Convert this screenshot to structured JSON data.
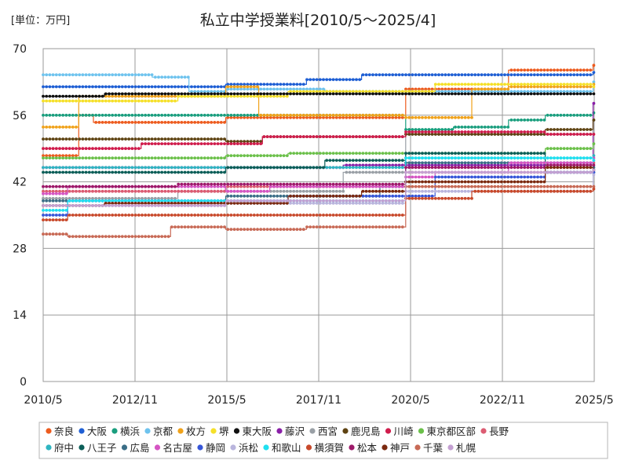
{
  "chart_data": {
    "type": "line",
    "title": "私立中学授業料[2010/5〜2025/4]",
    "unit_label": "[単位：万円]",
    "xlabel": "",
    "ylabel": "",
    "ylim": [
      0,
      70
    ],
    "yticks": [
      "0",
      "14",
      "28",
      "42",
      "56",
      "70"
    ],
    "ytick_values": [
      0,
      14,
      28,
      42,
      56,
      70
    ],
    "xlim": [
      2010.333,
      2025.333
    ],
    "xticks": [
      "2010/5",
      "2012/11",
      "2015/5",
      "2017/11",
      "2020/5",
      "2022/11",
      "2025/5"
    ],
    "xtick_values": [
      2010.333,
      2012.833,
      2015.333,
      2017.833,
      2020.333,
      2022.833,
      2025.333
    ],
    "grid": true,
    "legend_position": "bottom",
    "series": [
      {
        "name": "奈良",
        "color": "#ED5B1E",
        "steps": [
          [
            2010.333,
            47.5
          ],
          [
            2011.3,
            56
          ],
          [
            2011.7,
            54.5
          ],
          [
            2015.3,
            55.5
          ],
          [
            2020.2,
            61.5
          ],
          [
            2023.0,
            65.5
          ],
          [
            2025.3,
            66.5
          ]
        ]
      },
      {
        "name": "大阪",
        "color": "#1F5FD4",
        "steps": [
          [
            2010.333,
            62
          ],
          [
            2015.3,
            62.5
          ],
          [
            2017.5,
            63.5
          ],
          [
            2019.0,
            64.5
          ],
          [
            2023.0,
            64.5
          ],
          [
            2025.3,
            65
          ]
        ]
      },
      {
        "name": "横浜",
        "color": "#1A9E7E",
        "steps": [
          [
            2010.333,
            56
          ],
          [
            2020.2,
            53
          ],
          [
            2021.5,
            53.5
          ],
          [
            2023.0,
            55
          ],
          [
            2024.0,
            56
          ],
          [
            2025.3,
            56.5
          ]
        ]
      },
      {
        "name": "京都",
        "color": "#6EC3EE",
        "steps": [
          [
            2010.333,
            64.5
          ],
          [
            2013.3,
            64
          ],
          [
            2014.3,
            61
          ],
          [
            2015.3,
            61.5
          ],
          [
            2018.0,
            61
          ],
          [
            2025.3,
            63
          ]
        ]
      },
      {
        "name": "枚方",
        "color": "#F0A21A",
        "steps": [
          [
            2010.333,
            53.5
          ],
          [
            2011.3,
            60
          ],
          [
            2015.3,
            62
          ],
          [
            2016.2,
            56
          ],
          [
            2020.2,
            55.5
          ],
          [
            2022.0,
            61.5
          ],
          [
            2023.0,
            62
          ],
          [
            2025.3,
            62.5
          ]
        ]
      },
      {
        "name": "堺",
        "color": "#F5E02A",
        "steps": [
          [
            2010.333,
            59
          ],
          [
            2014.0,
            60
          ],
          [
            2017.0,
            61
          ],
          [
            2021.0,
            62.5
          ],
          [
            2025.3,
            62
          ]
        ]
      },
      {
        "name": "東大阪",
        "color": "#111111",
        "steps": [
          [
            2010.333,
            60
          ],
          [
            2012.0,
            60.5
          ],
          [
            2025.3,
            60.5
          ]
        ]
      },
      {
        "name": "藤沢",
        "color": "#8A1FA8",
        "steps": [
          [
            2010.333,
            45
          ],
          [
            2018.5,
            45.5
          ],
          [
            2025.3,
            58.5
          ]
        ]
      },
      {
        "name": "西宮",
        "color": "#9AA0A6",
        "steps": [
          [
            2010.333,
            38.5
          ],
          [
            2014.0,
            40
          ],
          [
            2018.5,
            44
          ],
          [
            2020.2,
            52
          ],
          [
            2025.3,
            55
          ]
        ]
      },
      {
        "name": "鹿児島",
        "color": "#5E4312",
        "steps": [
          [
            2010.333,
            51
          ],
          [
            2015.3,
            50.5
          ],
          [
            2016.3,
            51.5
          ],
          [
            2020.2,
            52
          ],
          [
            2024.0,
            53
          ],
          [
            2025.3,
            55
          ]
        ]
      },
      {
        "name": "川崎",
        "color": "#D01C4C",
        "steps": [
          [
            2010.333,
            49
          ],
          [
            2013.0,
            50
          ],
          [
            2016.3,
            51.5
          ],
          [
            2020.2,
            52.5
          ],
          [
            2024.0,
            52
          ],
          [
            2025.3,
            52
          ]
        ]
      },
      {
        "name": "東京都区部",
        "color": "#6BC04A",
        "steps": [
          [
            2010.333,
            47
          ],
          [
            2015.3,
            47.5
          ],
          [
            2017.0,
            48
          ],
          [
            2024.0,
            49
          ],
          [
            2025.3,
            50
          ]
        ]
      },
      {
        "name": "長野",
        "color": "#DC5C72",
        "steps": [
          [
            2010.333,
            40
          ],
          [
            2015.3,
            41
          ],
          [
            2020.2,
            44
          ],
          [
            2025.3,
            46
          ]
        ]
      },
      {
        "name": "府中",
        "color": "#2FB5C1",
        "steps": [
          [
            2010.333,
            45
          ],
          [
            2020.2,
            47
          ],
          [
            2025.3,
            47.5
          ]
        ]
      },
      {
        "name": "八王子",
        "color": "#0B5E58",
        "steps": [
          [
            2010.333,
            44
          ],
          [
            2015.3,
            45
          ],
          [
            2018.0,
            46.5
          ],
          [
            2020.2,
            48
          ],
          [
            2024.0,
            44
          ],
          [
            2025.3,
            44
          ]
        ]
      },
      {
        "name": "広島",
        "color": "#3B6E87",
        "steps": [
          [
            2010.333,
            38
          ],
          [
            2015.3,
            39
          ],
          [
            2019.5,
            41
          ],
          [
            2020.2,
            46
          ],
          [
            2025.3,
            45
          ]
        ]
      },
      {
        "name": "名古屋",
        "color": "#D555C3",
        "steps": [
          [
            2010.333,
            39.5
          ],
          [
            2011.0,
            41
          ],
          [
            2015.3,
            40
          ],
          [
            2016.5,
            41
          ],
          [
            2020.2,
            43
          ],
          [
            2021.0,
            44
          ],
          [
            2023.0,
            46
          ],
          [
            2025.3,
            47
          ]
        ]
      },
      {
        "name": "静岡",
        "color": "#3756D8",
        "steps": [
          [
            2010.333,
            35
          ],
          [
            2011.0,
            38
          ],
          [
            2017.0,
            39
          ],
          [
            2020.2,
            39
          ],
          [
            2021.0,
            43
          ],
          [
            2024.0,
            44
          ],
          [
            2025.3,
            44
          ]
        ]
      },
      {
        "name": "浜松",
        "color": "#B9B5DD",
        "steps": [
          [
            2010.333,
            37
          ],
          [
            2015.3,
            37.5
          ],
          [
            2020.2,
            40
          ],
          [
            2025.3,
            43.5
          ]
        ]
      },
      {
        "name": "和歌山",
        "color": "#1FE0F0",
        "steps": [
          [
            2010.333,
            36
          ],
          [
            2011.0,
            38
          ],
          [
            2020.2,
            47
          ],
          [
            2025.3,
            46.5
          ]
        ]
      },
      {
        "name": "横須賀",
        "color": "#C8492B",
        "steps": [
          [
            2010.333,
            34
          ],
          [
            2011.0,
            35
          ],
          [
            2015.3,
            35
          ],
          [
            2020.2,
            38.5
          ],
          [
            2022.0,
            40
          ],
          [
            2025.3,
            40.5
          ]
        ]
      },
      {
        "name": "松本",
        "color": "#9E1A6A",
        "steps": [
          [
            2010.333,
            41
          ],
          [
            2014.0,
            41.5
          ],
          [
            2020.2,
            45
          ],
          [
            2024.0,
            45.5
          ],
          [
            2025.3,
            45.5
          ]
        ]
      },
      {
        "name": "神戸",
        "color": "#7B2A10",
        "steps": [
          [
            2010.333,
            37
          ],
          [
            2012.0,
            37.5
          ],
          [
            2017.0,
            39
          ],
          [
            2019.0,
            40
          ],
          [
            2020.2,
            42
          ],
          [
            2024.0,
            45
          ],
          [
            2025.3,
            44.5
          ]
        ]
      },
      {
        "name": "千葉",
        "color": "#C86A56",
        "steps": [
          [
            2010.333,
            31
          ],
          [
            2011.0,
            30.5
          ],
          [
            2013.8,
            32.5
          ],
          [
            2015.3,
            32
          ],
          [
            2017.5,
            32.5
          ],
          [
            2020.2,
            41
          ],
          [
            2025.3,
            41
          ]
        ]
      },
      {
        "name": "札幌",
        "color": "#C4A0D2",
        "steps": [
          [
            2010.333,
            37
          ],
          [
            2015.3,
            38
          ],
          [
            2020.2,
            44
          ],
          [
            2025.3,
            44.5
          ]
        ]
      }
    ]
  }
}
